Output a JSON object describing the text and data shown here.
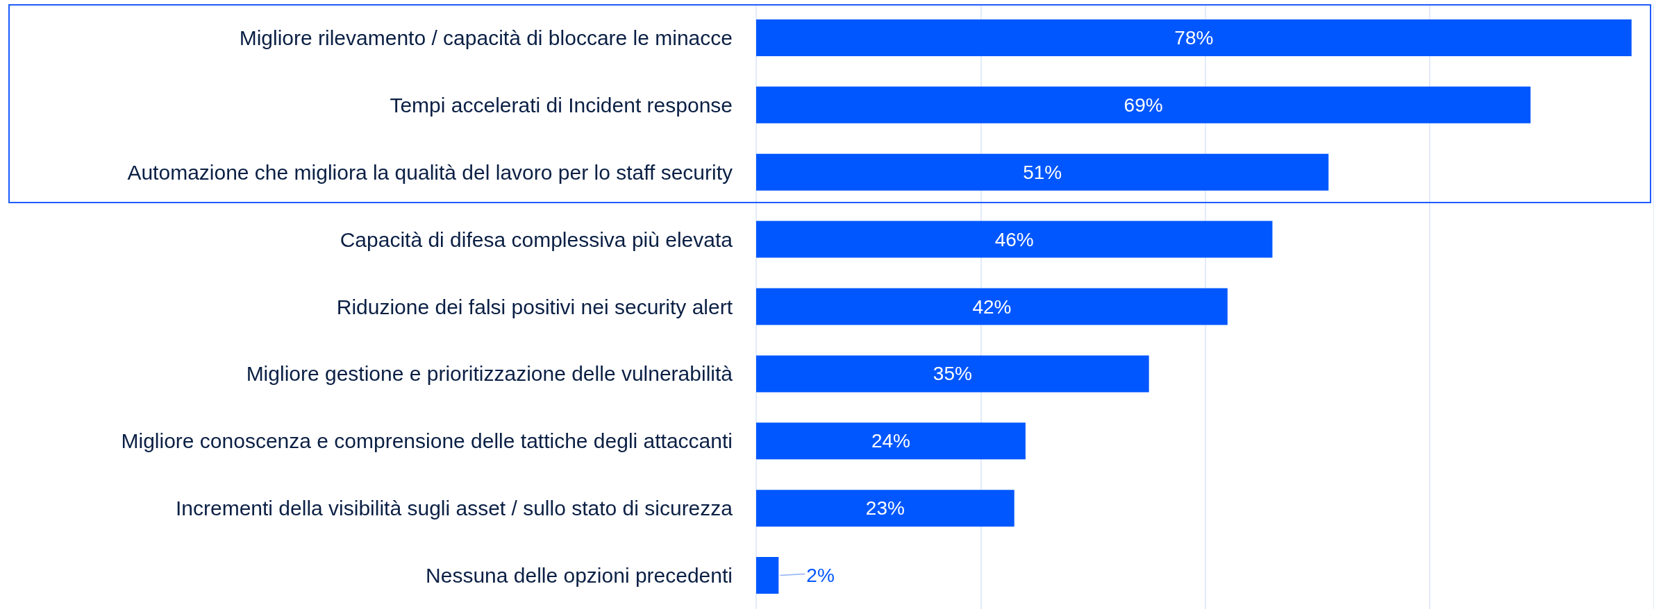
{
  "chart_data": {
    "type": "bar",
    "orientation": "horizontal",
    "categories": [
      "Migliore rilevamento / capacità di bloccare le minacce",
      "Tempi accelerati di Incident response",
      "Automazione che migliora la qualità del lavoro per lo staff security",
      "Capacità di difesa complessiva più elevata",
      "Riduzione dei falsi positivi nei security alert",
      "Migliore gestione e prioritizzazione delle vulnerabilità",
      "Migliore conoscenza e comprensione delle tattiche degli attaccanti",
      "Incrementi della visibilità sugli asset / sullo stato di sicurezza",
      "Nessuna delle opzioni precedenti"
    ],
    "values": [
      78,
      69,
      51,
      46,
      42,
      35,
      24,
      23,
      2
    ],
    "value_labels": [
      "78%",
      "69%",
      "51%",
      "46%",
      "42%",
      "35%",
      "24%",
      "23%",
      "2%"
    ],
    "color": "#0057ff",
    "tick_labels": "y",
    "grid": "x"
  }
}
